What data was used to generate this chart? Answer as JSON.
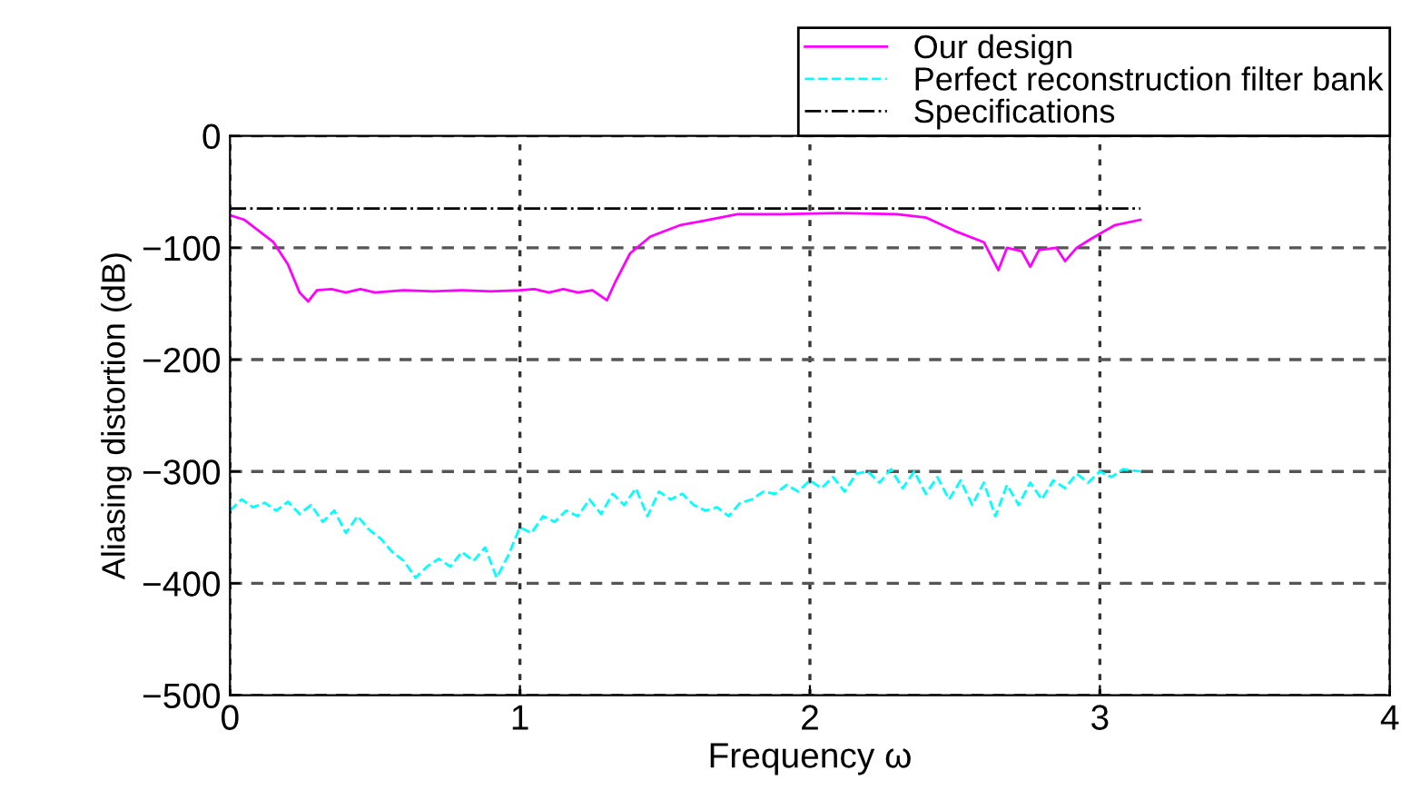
{
  "chart_data": {
    "type": "line",
    "xlabel": "Frequency ω",
    "ylabel": "Aliasing distortion (dB)",
    "xlim": [
      0,
      4
    ],
    "ylim": [
      -500,
      0
    ],
    "xticks": [
      0,
      1,
      2,
      3,
      4
    ],
    "yticks": [
      -500,
      -400,
      -300,
      -200,
      -100,
      0
    ],
    "grid": true,
    "legend": "top right",
    "marker": "none",
    "series": [
      {
        "name": "Our design",
        "color": "#ff00ff",
        "line_style": "solid",
        "x": [
          0,
          0.05,
          0.1,
          0.15,
          0.2,
          0.24,
          0.27,
          0.3,
          0.35,
          0.4,
          0.45,
          0.5,
          0.6,
          0.7,
          0.8,
          0.9,
          1.0,
          1.05,
          1.1,
          1.15,
          1.2,
          1.25,
          1.3,
          1.33,
          1.38,
          1.45,
          1.55,
          1.65,
          1.75,
          1.9,
          2.1,
          2.3,
          2.4,
          2.5,
          2.6,
          2.65,
          2.68,
          2.73,
          2.76,
          2.79,
          2.85,
          2.88,
          2.92,
          2.97,
          3.05,
          3.14
        ],
        "values": [
          -71,
          -75,
          -85,
          -95,
          -115,
          -140,
          -148,
          -138,
          -137,
          -140,
          -137,
          -140,
          -138,
          -139,
          -138,
          -139,
          -138,
          -137,
          -140,
          -137,
          -140,
          -138,
          -147,
          -130,
          -105,
          -90,
          -80,
          -75,
          -70,
          -70,
          -69,
          -70,
          -73,
          -85,
          -95,
          -120,
          -100,
          -103,
          -117,
          -102,
          -100,
          -112,
          -100,
          -92,
          -80,
          -75
        ]
      },
      {
        "name": "Perfect reconstruction filter bank",
        "color": "#00ffff",
        "line_style": "dashed",
        "x": [
          0,
          0.04,
          0.08,
          0.12,
          0.16,
          0.2,
          0.24,
          0.28,
          0.32,
          0.36,
          0.4,
          0.44,
          0.48,
          0.52,
          0.56,
          0.6,
          0.64,
          0.68,
          0.72,
          0.76,
          0.8,
          0.84,
          0.88,
          0.92,
          0.96,
          1.0,
          1.04,
          1.08,
          1.12,
          1.16,
          1.2,
          1.24,
          1.28,
          1.32,
          1.36,
          1.4,
          1.44,
          1.48,
          1.52,
          1.56,
          1.6,
          1.64,
          1.68,
          1.72,
          1.76,
          1.8,
          1.84,
          1.88,
          1.92,
          1.96,
          2.0,
          2.04,
          2.08,
          2.12,
          2.16,
          2.2,
          2.24,
          2.28,
          2.32,
          2.36,
          2.4,
          2.44,
          2.48,
          2.52,
          2.56,
          2.6,
          2.64,
          2.68,
          2.72,
          2.76,
          2.8,
          2.84,
          2.88,
          2.92,
          2.96,
          3.0,
          3.04,
          3.08,
          3.14
        ],
        "values": [
          -335,
          -325,
          -332,
          -328,
          -335,
          -327,
          -338,
          -330,
          -345,
          -335,
          -355,
          -340,
          -352,
          -360,
          -372,
          -380,
          -395,
          -385,
          -378,
          -385,
          -372,
          -380,
          -368,
          -395,
          -375,
          -350,
          -355,
          -340,
          -345,
          -335,
          -340,
          -325,
          -338,
          -320,
          -330,
          -315,
          -340,
          -318,
          -325,
          -320,
          -330,
          -335,
          -332,
          -340,
          -328,
          -325,
          -318,
          -320,
          -312,
          -318,
          -308,
          -315,
          -305,
          -318,
          -302,
          -300,
          -310,
          -298,
          -315,
          -300,
          -320,
          -305,
          -325,
          -308,
          -330,
          -310,
          -340,
          -312,
          -330,
          -310,
          -325,
          -308,
          -315,
          -302,
          -310,
          -300,
          -305,
          -298,
          -300
        ]
      },
      {
        "name": "Specifications",
        "color": "#000000",
        "line_style": "dashdot",
        "x": [
          0,
          3.14
        ],
        "values": [
          -65,
          -65
        ]
      }
    ]
  }
}
